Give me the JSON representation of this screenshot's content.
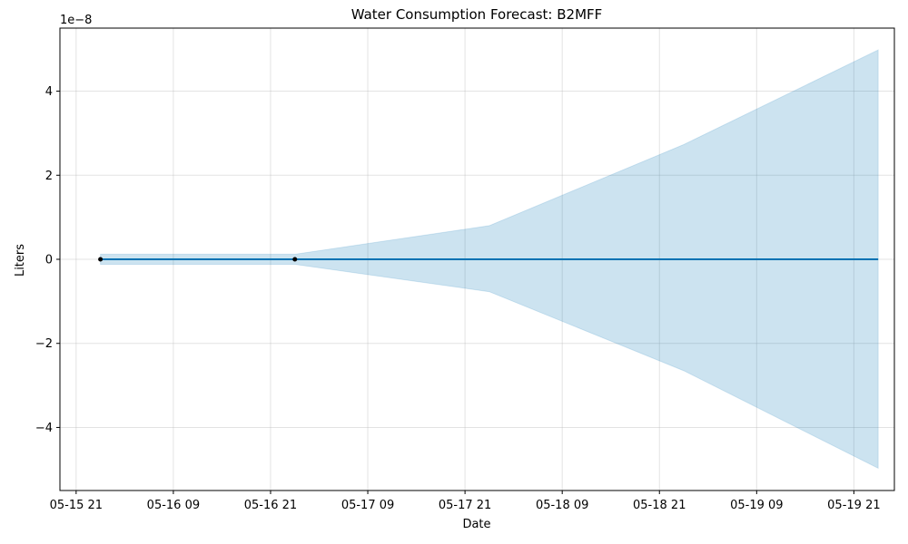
{
  "chart_data": {
    "type": "line",
    "title": "Water Consumption Forecast: B2MFF",
    "xlabel": "Date",
    "ylabel": "Liters",
    "y_scale_label": "1e−8",
    "x_ticks": [
      {
        "value": "2024-05-15T21:00",
        "label": "05-15 21"
      },
      {
        "value": "2024-05-16T09:00",
        "label": "05-16 09"
      },
      {
        "value": "2024-05-16T21:00",
        "label": "05-16 21"
      },
      {
        "value": "2024-05-17T09:00",
        "label": "05-17 09"
      },
      {
        "value": "2024-05-17T21:00",
        "label": "05-17 21"
      },
      {
        "value": "2024-05-18T09:00",
        "label": "05-18 09"
      },
      {
        "value": "2024-05-18T21:00",
        "label": "05-18 21"
      },
      {
        "value": "2024-05-19T09:00",
        "label": "05-19 09"
      },
      {
        "value": "2024-05-19T21:00",
        "label": "05-19 21"
      }
    ],
    "y_ticks": [
      {
        "value": -4,
        "label": "−4"
      },
      {
        "value": -2,
        "label": "−2"
      },
      {
        "value": 0,
        "label": "0"
      },
      {
        "value": 2,
        "label": "2"
      },
      {
        "value": 4,
        "label": "4"
      }
    ],
    "xlim": [
      "2024-05-15T19:00",
      "2024-05-20T02:00"
    ],
    "ylim": [
      -5.5,
      5.5
    ],
    "grid": true,
    "series": [
      {
        "kind": "forecast",
        "x": [
          "2024-05-16T00:00",
          "2024-05-17T00:00",
          "2024-05-18T00:00",
          "2024-05-19T00:00",
          "2024-05-20T00:00"
        ],
        "y": [
          0,
          0,
          0,
          0,
          0
        ],
        "color": "#0072B2"
      },
      {
        "kind": "uncertainty-interval",
        "x": [
          "2024-05-16T00:00",
          "2024-05-17T00:00",
          "2024-05-18T00:00",
          "2024-05-19T00:00",
          "2024-05-20T00:00"
        ],
        "lower": [
          -0.12,
          -0.12,
          -0.77,
          -2.65,
          -4.97
        ],
        "upper": [
          0.12,
          0.12,
          0.8,
          2.73,
          4.98
        ],
        "color": "#0072B2",
        "opacity": 0.2
      },
      {
        "kind": "observed",
        "x": [
          "2024-05-16T00:00",
          "2024-05-17T00:00"
        ],
        "y": [
          0,
          0
        ],
        "color": "#000000"
      }
    ]
  }
}
